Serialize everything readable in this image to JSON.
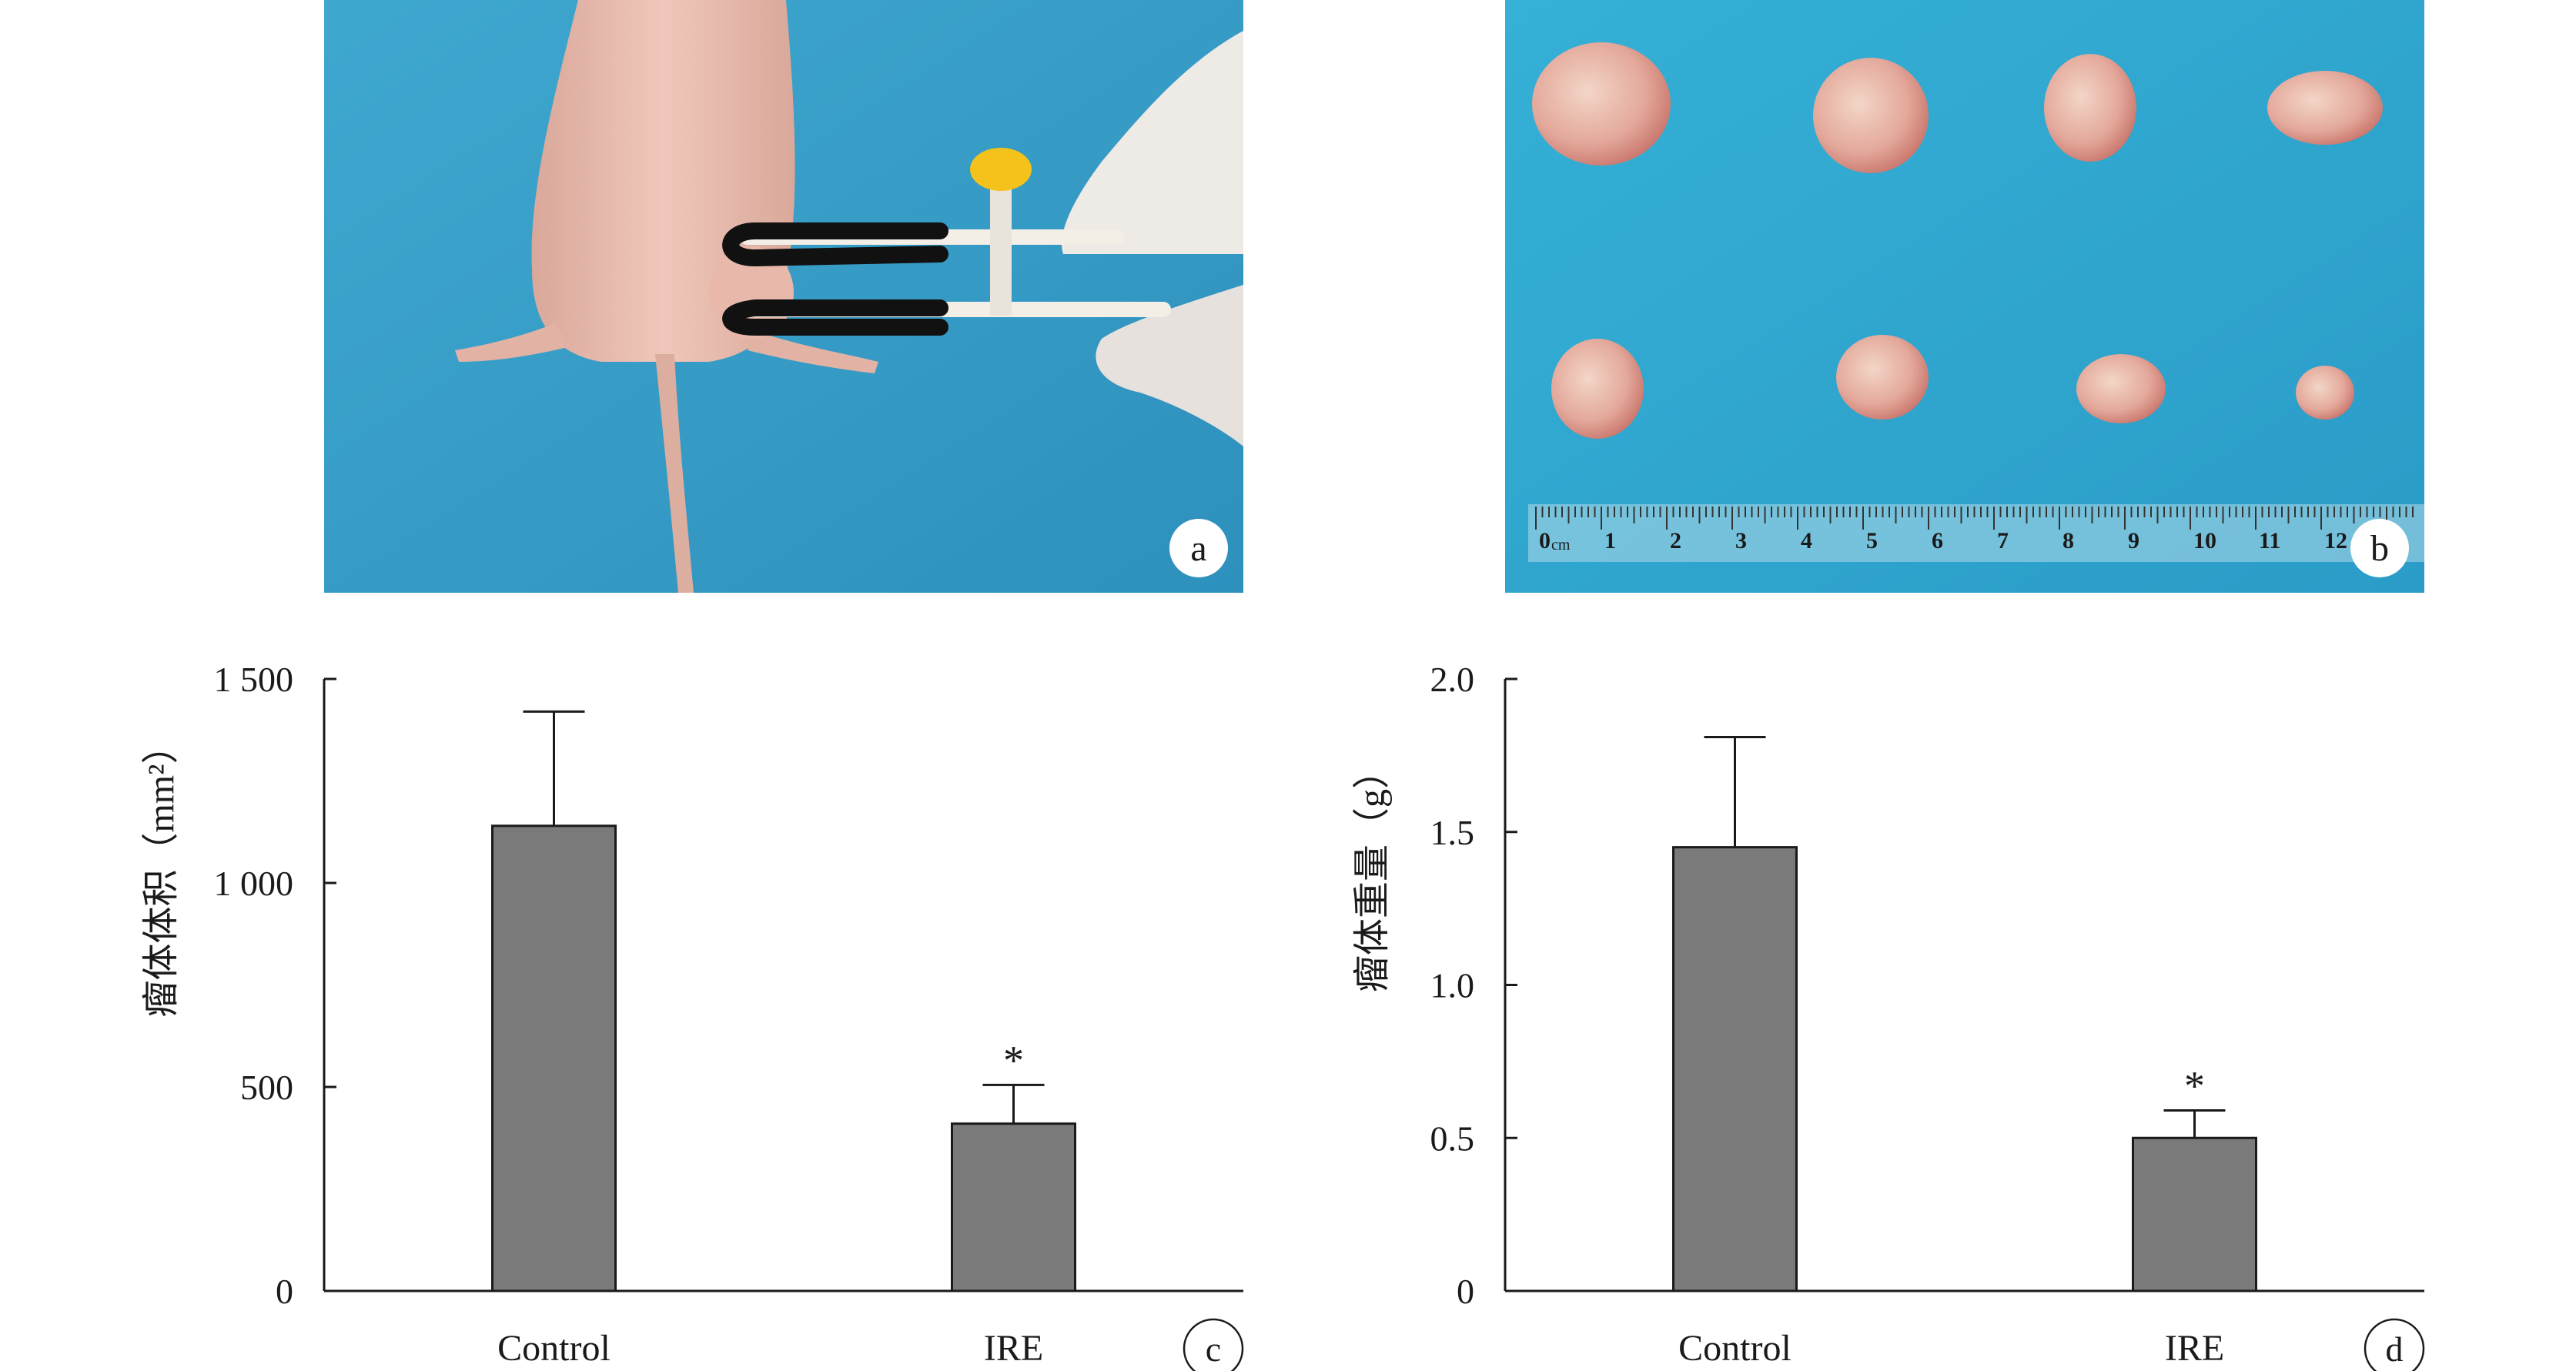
{
  "panels": {
    "a": {
      "label": "a"
    },
    "b": {
      "label": "b",
      "ruler_unit": "cm",
      "ruler_numbers": [
        "0",
        "1",
        "2",
        "3",
        "4",
        "5",
        "6",
        "7",
        "8",
        "9",
        "10",
        "11",
        "12"
      ]
    },
    "c": {
      "label": "c"
    },
    "d": {
      "label": "d"
    }
  },
  "chart_data": [
    {
      "type": "bar",
      "panel": "c",
      "ylabel": "瘤体体积（mm²）",
      "xlabel": "",
      "categories": [
        "Control",
        "IRE"
      ],
      "values": [
        1140,
        410
      ],
      "error": [
        280,
        95
      ],
      "significance": [
        "",
        "*"
      ],
      "ylim": [
        0,
        1500
      ],
      "yticks": [
        0,
        500,
        1000,
        1500
      ],
      "ytick_labels": [
        "0",
        "500",
        "1 000",
        "1 500"
      ],
      "bar_color": "#7a7a7a",
      "grid": false
    },
    {
      "type": "bar",
      "panel": "d",
      "ylabel": "瘤体重量（g）",
      "xlabel": "",
      "categories": [
        "Control",
        "IRE"
      ],
      "values": [
        1.45,
        0.5
      ],
      "error": [
        0.36,
        0.09
      ],
      "significance": [
        "",
        "*"
      ],
      "ylim": [
        0,
        2.0
      ],
      "yticks": [
        0,
        0.5,
        1.0,
        1.5,
        2.0
      ],
      "ytick_labels": [
        "0",
        "0.5",
        "1.0",
        "1.5",
        "2.0"
      ],
      "bar_color": "#7a7a7a",
      "grid": false
    }
  ]
}
